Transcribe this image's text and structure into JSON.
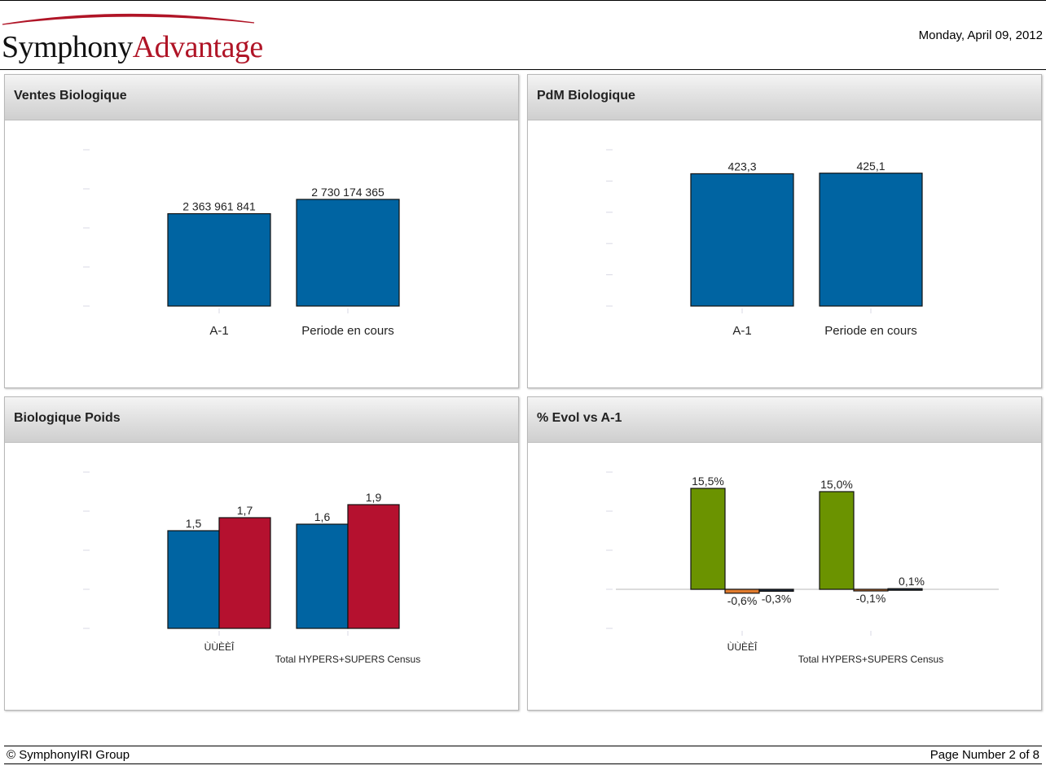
{
  "header": {
    "logo_part1": "Symphony",
    "logo_part2": "Advantage",
    "date": "Monday, April 09, 2012"
  },
  "footer": {
    "copyright": "© SymphonyIRI Group",
    "page_number": "Page Number 2 of 8"
  },
  "colors": {
    "blue": "#0064a2",
    "red": "#b5112f",
    "green": "#6b9300",
    "orange": "#e07b2e"
  },
  "panels": [
    {
      "title": "Ventes Biologique"
    },
    {
      "title": "PdM Biologique"
    },
    {
      "title": "Biologique Poids"
    },
    {
      "title": "% Evol vs A-1"
    }
  ],
  "chart_data": [
    {
      "type": "bar",
      "title": "Ventes Biologique",
      "categories": [
        "A-1",
        "Periode en cours"
      ],
      "series": [
        {
          "values": [
            2363961841,
            2730174365
          ],
          "labels": [
            "2 363 961 841",
            "2 730 174 365"
          ]
        }
      ],
      "ylim": [
        0,
        4000000000
      ]
    },
    {
      "type": "bar",
      "title": "PdM Biologique",
      "categories": [
        "A-1",
        "Periode en cours"
      ],
      "series": [
        {
          "values": [
            423.3,
            425.1
          ],
          "labels": [
            "423,3",
            "425,1"
          ]
        }
      ],
      "ylim": [
        0,
        500
      ]
    },
    {
      "type": "bar",
      "title": "Biologique Poids",
      "categories": [
        "ÙÙÈÈÎ",
        "Total HYPERS+SUPERS Census"
      ],
      "series": [
        {
          "values": [
            1.5,
            1.6
          ],
          "labels": [
            "1,5",
            "1,6"
          ]
        },
        {
          "values": [
            1.7,
            1.9
          ],
          "labels": [
            "1,7",
            "1,9"
          ]
        }
      ],
      "ylim": [
        0,
        2.4
      ]
    },
    {
      "type": "bar",
      "title": "% Evol vs A-1",
      "categories": [
        "ÙÙÈÈÎ",
        "Total HYPERS+SUPERS Census"
      ],
      "series": [
        {
          "values": [
            15.5,
            15.0
          ],
          "labels": [
            "15,5%",
            "15,0%"
          ]
        },
        {
          "values": [
            -0.6,
            -0.1
          ],
          "labels": [
            "-0,6%",
            "-0,1%"
          ]
        },
        {
          "values": [
            -0.3,
            0.1
          ],
          "labels": [
            "-0,3%",
            "0,1%"
          ]
        }
      ],
      "ylim": [
        -6,
        18
      ]
    }
  ]
}
